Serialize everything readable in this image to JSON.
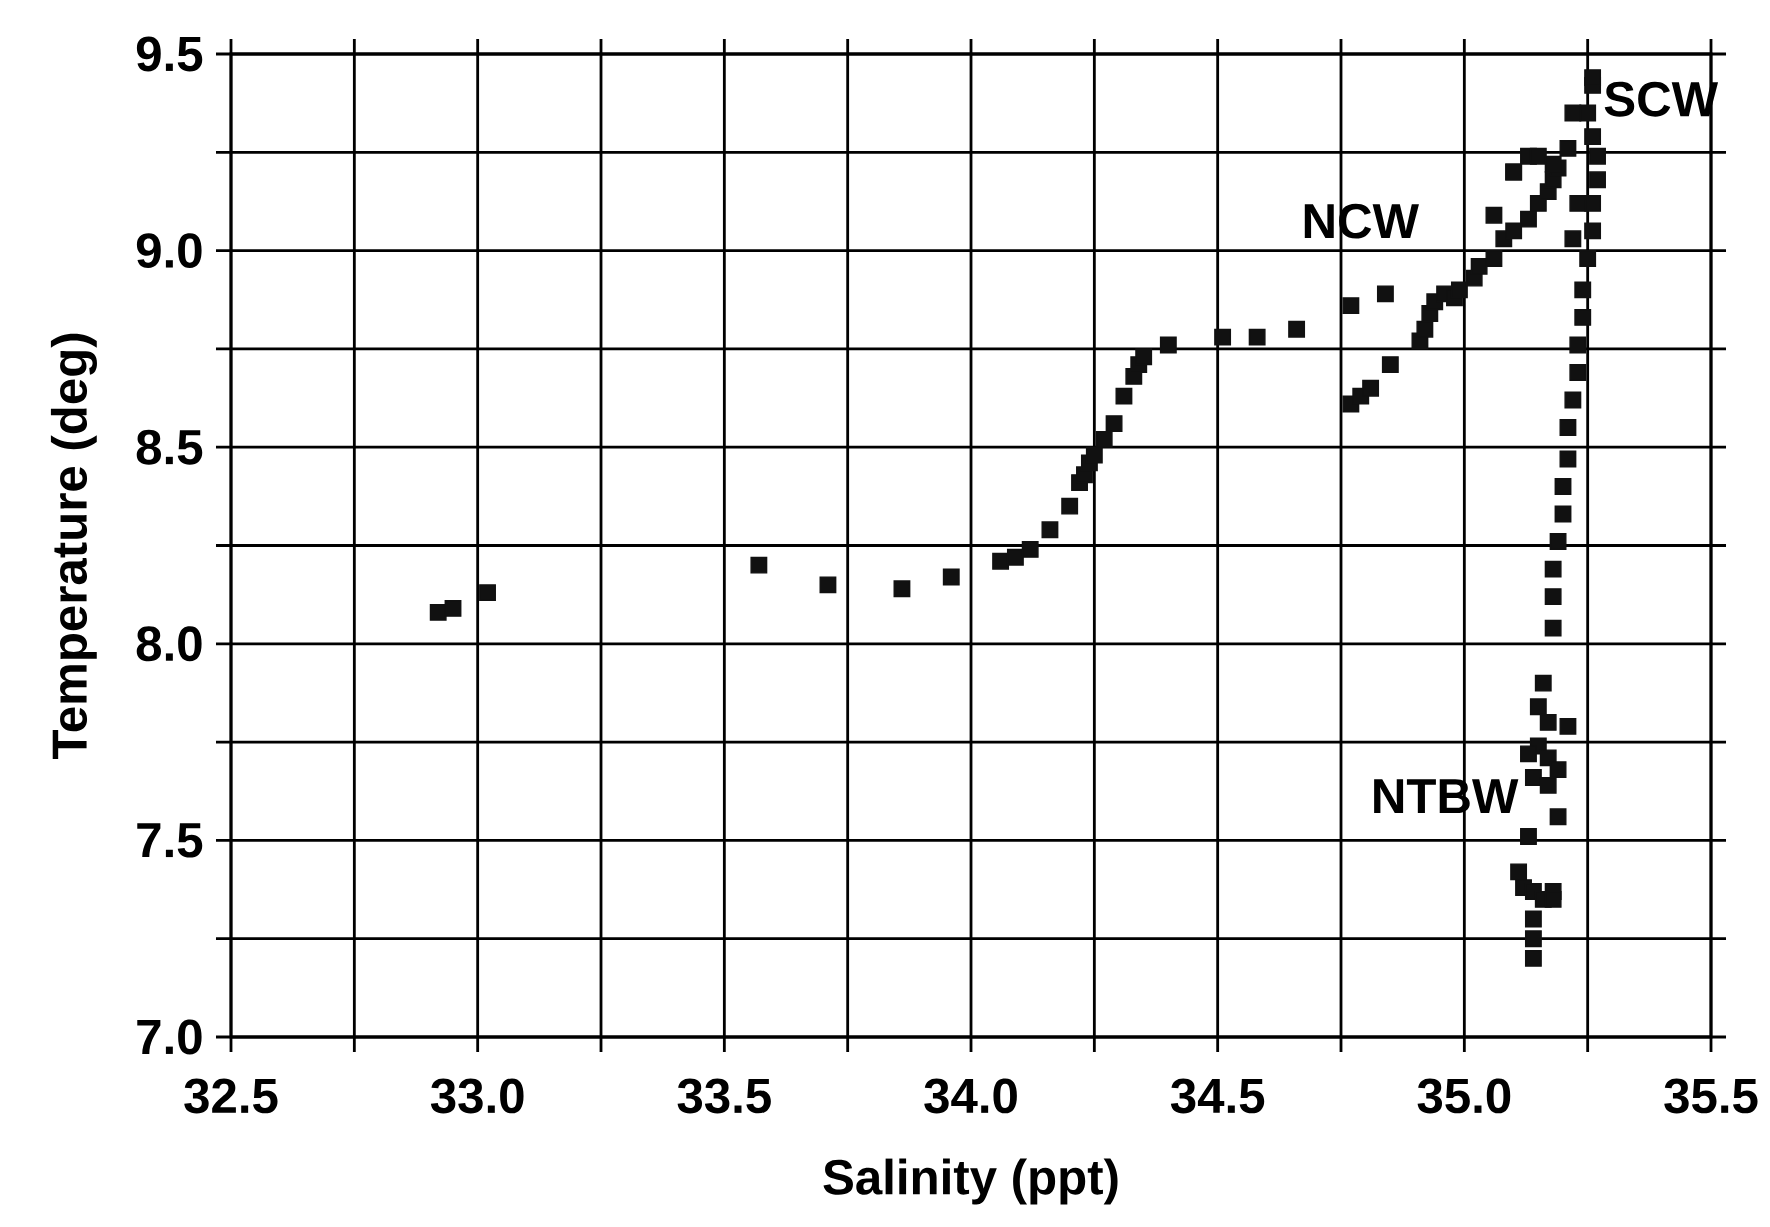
{
  "chart_data": {
    "type": "scatter",
    "xlabel": "Salinity (ppt)",
    "ylabel": "Temperature (deg)",
    "xlim": [
      32.5,
      35.5
    ],
    "ylim": [
      7.0,
      9.5
    ],
    "xticks": [
      32.5,
      {
        "value": 32.75,
        "label": null
      },
      {
        "value": 33,
        "label": "33.0"
      },
      {
        "value": 33.25,
        "label": null
      },
      33.5,
      {
        "value": 33.75,
        "label": null
      },
      {
        "value": 34,
        "label": "34.0"
      },
      {
        "value": 34.25,
        "label": null
      },
      34.5,
      {
        "value": 34.75,
        "label": null
      },
      {
        "value": 35,
        "label": "35.0"
      },
      {
        "value": 35.25,
        "label": null
      },
      35.5
    ],
    "yticks": [
      {
        "value": 7,
        "label": "7.0"
      },
      {
        "value": 7.25,
        "label": null
      },
      7.5,
      {
        "value": 7.75,
        "label": null
      },
      {
        "value": 8,
        "label": "8.0"
      },
      {
        "value": 8.25,
        "label": null
      },
      8.5,
      {
        "value": 8.75,
        "label": null
      },
      {
        "value": 9,
        "label": "9.0"
      },
      {
        "value": 9.25,
        "label": null
      },
      9.5
    ],
    "grid": true,
    "marker": "square",
    "color": "#111111",
    "x": [
      32.92,
      32.95,
      33.02,
      33.57,
      33.71,
      33.86,
      33.96,
      34.06,
      34.09,
      34.12,
      34.16,
      34.2,
      34.22,
      34.23,
      34.24,
      34.25,
      34.27,
      34.29,
      34.31,
      34.33,
      34.34,
      34.35,
      34.4,
      34.51,
      34.58,
      34.66,
      34.77,
      34.84,
      34.77,
      34.79,
      34.81,
      34.85,
      34.91,
      34.92,
      34.93,
      34.94,
      34.96,
      34.98,
      34.99,
      35.02,
      35.03,
      35.06,
      35.08,
      35.1,
      35.13,
      35.15,
      35.17,
      35.18,
      35.19,
      35.1,
      35.13,
      35.15,
      35.06,
      35.1,
      35.18,
      35.18,
      35.18,
      35.19,
      35.2,
      35.2,
      35.21,
      35.21,
      35.22,
      35.23,
      35.23,
      35.24,
      35.24,
      35.25,
      35.26,
      35.26,
      35.27,
      35.27,
      35.26,
      35.25,
      35.26,
      35.26,
      35.22,
      35.21,
      35.18,
      35.23,
      35.22,
      35.16,
      35.15,
      35.17,
      35.21,
      35.15,
      35.17,
      35.13,
      35.19,
      35.14,
      35.17,
      35.19,
      35.13,
      35.11,
      35.12,
      35.14,
      35.16,
      35.18,
      35.18,
      35.14,
      35.14,
      35.14
    ],
    "values": [
      8.08,
      8.09,
      8.13,
      8.2,
      8.15,
      8.14,
      8.17,
      8.21,
      8.22,
      8.24,
      8.29,
      8.35,
      8.41,
      8.43,
      8.46,
      8.48,
      8.52,
      8.56,
      8.63,
      8.68,
      8.71,
      8.73,
      8.76,
      8.78,
      8.78,
      8.8,
      8.86,
      8.89,
      8.61,
      8.63,
      8.65,
      8.71,
      8.77,
      8.8,
      8.84,
      8.87,
      8.89,
      8.88,
      8.9,
      8.93,
      8.96,
      8.98,
      9.03,
      9.05,
      9.08,
      9.12,
      9.15,
      9.18,
      9.21,
      9.2,
      9.24,
      9.24,
      9.09,
      9.2,
      8.04,
      8.12,
      8.19,
      8.26,
      8.33,
      8.4,
      8.47,
      8.55,
      8.62,
      8.69,
      8.76,
      8.83,
      8.9,
      8.98,
      9.05,
      9.12,
      9.18,
      9.24,
      9.29,
      9.35,
      9.42,
      9.44,
      9.35,
      9.26,
      9.22,
      9.12,
      9.03,
      7.9,
      7.84,
      7.8,
      7.79,
      7.74,
      7.71,
      7.72,
      7.68,
      7.66,
      7.64,
      7.56,
      7.51,
      7.42,
      7.38,
      7.37,
      7.35,
      7.37,
      7.35,
      7.3,
      7.25,
      7.2
    ],
    "annotations": [
      "SCW",
      "NCW",
      "NTBW"
    ]
  }
}
